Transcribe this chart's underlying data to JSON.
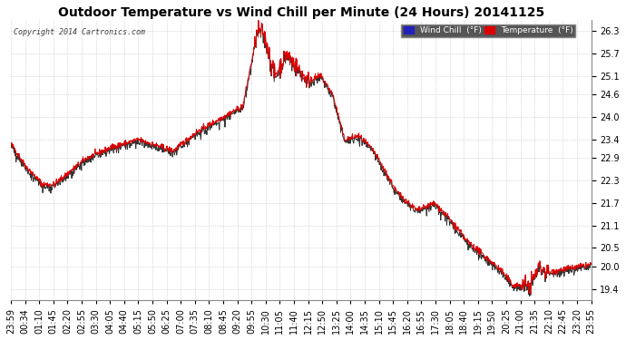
{
  "title": "Outdoor Temperature vs Wind Chill per Minute (24 Hours) 20141125",
  "copyright_text": "Copyright 2014 Cartronics.com",
  "ylabel_right_ticks": [
    19.4,
    20.0,
    20.5,
    21.1,
    21.7,
    22.3,
    22.9,
    23.4,
    24.0,
    24.6,
    25.1,
    25.7,
    26.3
  ],
  "ylim": [
    19.1,
    26.6
  ],
  "temp_color": "#dd0000",
  "wind_chill_color": "#333333",
  "bg_color": "#ffffff",
  "grid_color": "#aaaaaa",
  "legend_wind_chill_bg": "#2222bb",
  "legend_temp_bg": "#dd0000",
  "title_fontsize": 10,
  "tick_fontsize": 7,
  "x_tick_labels": [
    "23:59",
    "00:34",
    "01:10",
    "01:45",
    "02:20",
    "02:55",
    "03:30",
    "04:05",
    "04:40",
    "05:15",
    "05:50",
    "06:25",
    "07:00",
    "07:35",
    "08:10",
    "08:45",
    "09:20",
    "09:55",
    "10:30",
    "11:05",
    "11:40",
    "12:15",
    "12:50",
    "13:25",
    "14:00",
    "14:35",
    "15:10",
    "15:45",
    "16:20",
    "16:55",
    "17:30",
    "18:05",
    "18:40",
    "19:15",
    "19:50",
    "20:25",
    "21:00",
    "21:35",
    "22:10",
    "22:45",
    "23:20",
    "23:55"
  ],
  "num_points": 1440,
  "figwidth": 6.9,
  "figheight": 3.75,
  "dpi": 100
}
